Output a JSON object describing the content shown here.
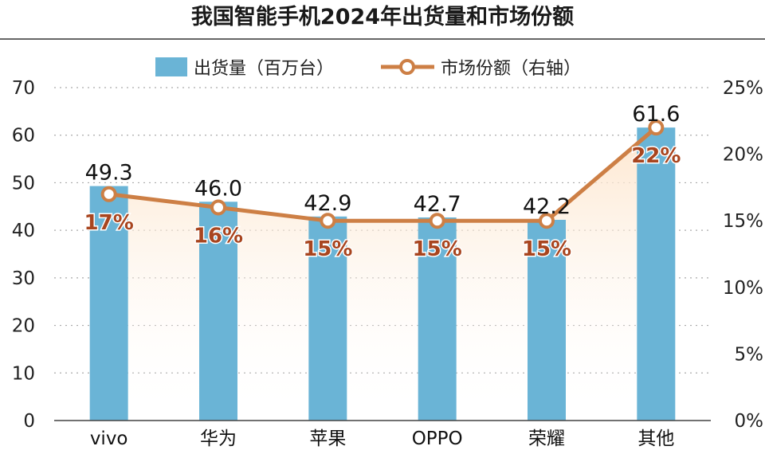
{
  "chart_data": {
    "type": "bar",
    "title": "我国智能手机2024年出货量和市场份额",
    "categories": [
      "vivo",
      "华为",
      "苹果",
      "OPPO",
      "荣耀",
      "其他"
    ],
    "series": [
      {
        "name": "出货量（百万台）",
        "kind": "bar",
        "axis": "left",
        "values": [
          49.3,
          46.0,
          42.9,
          42.7,
          42.2,
          61.6
        ],
        "labels": [
          "49.3",
          "46.0",
          "42.9",
          "42.7",
          "42.2",
          "61.6"
        ]
      },
      {
        "name": "市场份额（右轴）",
        "kind": "line",
        "axis": "right",
        "values": [
          17,
          16,
          15,
          15,
          15,
          22
        ],
        "labels": [
          "17%",
          "16%",
          "15%",
          "15%",
          "15%",
          "22%"
        ]
      }
    ],
    "y_left": {
      "range": [
        0,
        70
      ],
      "ticks": [
        "0",
        "10",
        "20",
        "30",
        "40",
        "50",
        "60",
        "70"
      ]
    },
    "y_right": {
      "range": [
        0,
        25
      ],
      "ticks": [
        "0%",
        "5%",
        "10%",
        "15%",
        "20%",
        "25%"
      ]
    },
    "grid": true,
    "legend_position": "top-center",
    "colors": {
      "bar": "#6ab4d6",
      "line": "#cd7f45",
      "marker_fill": "#ffffff",
      "pct_label": "#a8451f",
      "area_fill": "#fde3c8",
      "text": "#222222",
      "grid": "#aaaaaa"
    }
  }
}
